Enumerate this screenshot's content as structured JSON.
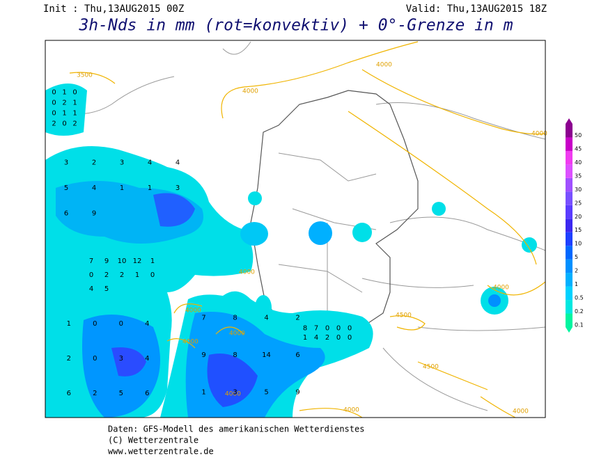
{
  "header": {
    "init": "Init : Thu,13AUG2015 00Z",
    "valid": "Valid: Thu,13AUG2015 18Z",
    "title": "3h-Nds in mm (rot=konvektiv) + 0°-Grenze in m"
  },
  "legend": [
    {
      "label": "0.1",
      "color": "#00f5a0"
    },
    {
      "label": "0.2",
      "color": "#00e8e0"
    },
    {
      "label": "0.5",
      "color": "#00d2ff"
    },
    {
      "label": "1",
      "color": "#00b0ff"
    },
    {
      "label": "2",
      "color": "#0090ff"
    },
    {
      "label": "5",
      "color": "#0068ff"
    },
    {
      "label": "10",
      "color": "#1e40ff"
    },
    {
      "label": "15",
      "color": "#3c28f0"
    },
    {
      "label": "20",
      "color": "#5a3cff"
    },
    {
      "label": "25",
      "color": "#7850ff"
    },
    {
      "label": "30",
      "color": "#a050ff"
    },
    {
      "label": "35",
      "color": "#dc50ff"
    },
    {
      "label": "40",
      "color": "#f03cf0"
    },
    {
      "label": "45",
      "color": "#c800c8"
    },
    {
      "label": "50",
      "color": "#8c0090"
    }
  ],
  "isotherm_labels": [
    "3500",
    "4000",
    "4000",
    "4000",
    "4000",
    "4000",
    "4000",
    "4000",
    "4500",
    "4500",
    "4000",
    "4000",
    "4000",
    "4000"
  ],
  "cell_values": [
    "0",
    "1",
    "0",
    "0",
    "2",
    "1",
    "0",
    "1",
    "1",
    "2",
    "0",
    "2",
    "3",
    "2",
    "3",
    "4",
    "4",
    "5",
    "4",
    "1",
    "1",
    "3",
    "6",
    "9",
    "7",
    "9",
    "10",
    "12",
    "1",
    "0",
    "2",
    "2",
    "1",
    "0",
    "4",
    "5",
    "1",
    "0",
    "0",
    "4",
    "2",
    "0",
    "3",
    "4",
    "6",
    "2",
    "5",
    "6",
    "7",
    "8",
    "4",
    "2",
    "9",
    "8",
    "14",
    "6",
    "1",
    "3",
    "5",
    "9",
    "8",
    "7",
    "0",
    "0",
    "0",
    "1",
    "4",
    "2",
    "0",
    "0"
  ],
  "footer": [
    "Daten: GFS-Modell des amerikanischen Wetterdienstes",
    "(C) Wetterzentrale",
    "www.wetterzentrale.de"
  ]
}
